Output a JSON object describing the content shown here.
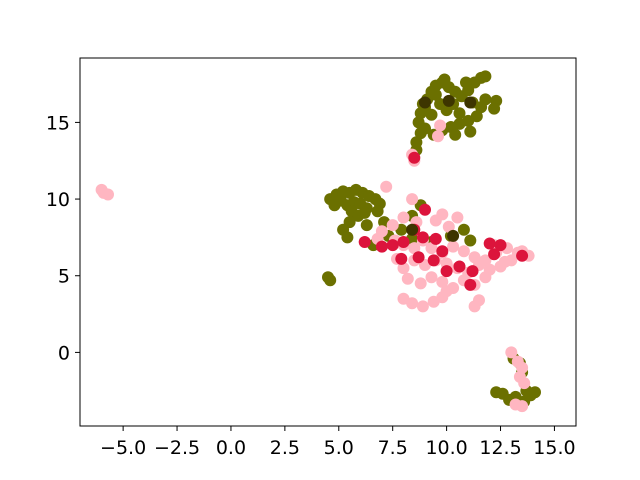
{
  "chart_data": {
    "type": "scatter",
    "title": "",
    "xlabel": "",
    "ylabel": "",
    "xlim": [
      -7.0,
      16.0
    ],
    "ylim": [
      -4.8,
      19.2
    ],
    "x_ticks": [
      -5.0,
      -2.5,
      0.0,
      2.5,
      5.0,
      7.5,
      10.0,
      12.5,
      15.0
    ],
    "x_tick_labels": [
      "−5.0",
      "−2.5",
      "0.0",
      "2.5",
      "5.0",
      "7.5",
      "10.0",
      "12.5",
      "15.0"
    ],
    "y_ticks": [
      0,
      5,
      10,
      15
    ],
    "y_tick_labels": [
      "0",
      "5",
      "10",
      "15"
    ],
    "grid": false,
    "legend": "none",
    "series": [
      {
        "color": "#6b7000",
        "points": [
          [
            8.6,
            13.2
          ],
          [
            8.6,
            13.7
          ],
          [
            8.8,
            14.3
          ],
          [
            8.7,
            15.0
          ],
          [
            8.8,
            15.6
          ],
          [
            9.0,
            16.0
          ],
          [
            9.1,
            16.5
          ],
          [
            9.3,
            17.0
          ],
          [
            9.5,
            17.4
          ],
          [
            9.8,
            17.6
          ],
          [
            10.1,
            17.3
          ],
          [
            10.4,
            17.0
          ],
          [
            10.7,
            16.7
          ],
          [
            11.0,
            17.1
          ],
          [
            11.3,
            17.6
          ],
          [
            11.6,
            17.9
          ],
          [
            11.8,
            18.0
          ],
          [
            11.2,
            16.3
          ],
          [
            11.6,
            16.0
          ],
          [
            11.8,
            16.5
          ],
          [
            11.4,
            15.4
          ],
          [
            11.0,
            15.1
          ],
          [
            10.6,
            14.9
          ],
          [
            10.2,
            14.7
          ],
          [
            9.8,
            14.5
          ],
          [
            9.4,
            14.2
          ],
          [
            9.0,
            14.6
          ],
          [
            9.3,
            15.5
          ],
          [
            9.7,
            16.2
          ],
          [
            10.0,
            15.8
          ],
          [
            10.3,
            16.2
          ],
          [
            9.5,
            16.8
          ],
          [
            10.6,
            15.6
          ],
          [
            11.1,
            14.4
          ],
          [
            10.4,
            14.2
          ],
          [
            8.9,
            16.2
          ],
          [
            9.9,
            17.8
          ],
          [
            10.9,
            17.6
          ],
          [
            12.3,
            16.4
          ],
          [
            12.2,
            15.9
          ],
          [
            4.6,
            10.0
          ],
          [
            4.9,
            10.3
          ],
          [
            5.2,
            10.5
          ],
          [
            5.5,
            10.4
          ],
          [
            5.8,
            10.6
          ],
          [
            6.1,
            10.4
          ],
          [
            6.4,
            10.2
          ],
          [
            6.7,
            10.0
          ],
          [
            6.9,
            9.7
          ],
          [
            4.8,
            9.6
          ],
          [
            5.1,
            9.9
          ],
          [
            5.4,
            9.6
          ],
          [
            5.7,
            9.8
          ],
          [
            6.0,
            9.7
          ],
          [
            6.3,
            9.4
          ],
          [
            5.6,
            9.2
          ],
          [
            5.9,
            8.9
          ],
          [
            6.2,
            9.1
          ],
          [
            5.5,
            8.5
          ],
          [
            5.2,
            8.0
          ],
          [
            6.8,
            9.2
          ],
          [
            7.1,
            8.5
          ],
          [
            8.8,
            9.6
          ],
          [
            8.4,
            8.9
          ],
          [
            7.9,
            8.0
          ],
          [
            7.3,
            7.6
          ],
          [
            8.4,
            7.4
          ],
          [
            9.3,
            7.2
          ],
          [
            10.2,
            7.6
          ],
          [
            10.8,
            8.0
          ],
          [
            11.1,
            7.3
          ],
          [
            5.4,
            7.5
          ],
          [
            6.3,
            8.3
          ],
          [
            6.6,
            7.0
          ],
          [
            4.5,
            4.9
          ],
          [
            4.6,
            4.7
          ],
          [
            13.1,
            -0.4
          ],
          [
            13.4,
            -0.7
          ],
          [
            13.5,
            -1.3
          ],
          [
            12.3,
            -2.6
          ],
          [
            12.6,
            -2.7
          ],
          [
            13.2,
            -2.9
          ],
          [
            13.6,
            -3.2
          ],
          [
            13.9,
            -2.8
          ],
          [
            13.7,
            -2.5
          ],
          [
            14.1,
            -2.6
          ],
          [
            13.3,
            -3.3
          ],
          [
            12.9,
            -3.1
          ]
        ]
      },
      {
        "color": "#ffb6c1",
        "points": [
          [
            -6.0,
            10.6
          ],
          [
            -5.9,
            10.4
          ],
          [
            -5.7,
            10.3
          ],
          [
            8.4,
            12.9
          ],
          [
            8.5,
            12.5
          ],
          [
            9.6,
            14.1
          ],
          [
            9.7,
            14.8
          ],
          [
            7.2,
            10.8
          ],
          [
            8.4,
            10.0
          ],
          [
            9.5,
            8.6
          ],
          [
            9.8,
            9.0
          ],
          [
            10.5,
            8.8
          ],
          [
            10.1,
            8.2
          ],
          [
            8.6,
            8.5
          ],
          [
            8.0,
            8.8
          ],
          [
            7.5,
            8.3
          ],
          [
            7.0,
            7.9
          ],
          [
            6.8,
            7.4
          ],
          [
            7.6,
            7.3
          ],
          [
            8.0,
            7.0
          ],
          [
            8.5,
            6.8
          ],
          [
            8.9,
            7.3
          ],
          [
            9.3,
            6.8
          ],
          [
            9.8,
            6.5
          ],
          [
            10.3,
            6.9
          ],
          [
            10.8,
            6.6
          ],
          [
            11.3,
            6.2
          ],
          [
            11.8,
            6.0
          ],
          [
            12.3,
            6.5
          ],
          [
            12.8,
            6.8
          ],
          [
            13.3,
            6.5
          ],
          [
            13.8,
            6.3
          ],
          [
            13.0,
            6.0
          ],
          [
            12.5,
            5.6
          ],
          [
            12.0,
            5.4
          ],
          [
            11.5,
            5.7
          ],
          [
            11.0,
            5.2
          ],
          [
            10.5,
            5.5
          ],
          [
            10.0,
            5.8
          ],
          [
            9.5,
            6.0
          ],
          [
            9.0,
            5.7
          ],
          [
            8.5,
            6.0
          ],
          [
            8.0,
            5.5
          ],
          [
            7.7,
            6.1
          ],
          [
            8.2,
            4.8
          ],
          [
            8.8,
            4.5
          ],
          [
            9.3,
            4.9
          ],
          [
            9.8,
            4.6
          ],
          [
            10.3,
            4.2
          ],
          [
            10.8,
            4.7
          ],
          [
            11.3,
            4.4
          ],
          [
            11.8,
            4.9
          ],
          [
            8.0,
            3.5
          ],
          [
            8.4,
            3.2
          ],
          [
            8.9,
            3.0
          ],
          [
            9.4,
            3.3
          ],
          [
            9.8,
            3.6
          ],
          [
            10.0,
            4.0
          ],
          [
            11.3,
            3.0
          ],
          [
            11.5,
            3.4
          ],
          [
            12.2,
            7.0
          ],
          [
            12.7,
            5.9
          ],
          [
            13.5,
            6.6
          ],
          [
            13.0,
            0.0
          ],
          [
            13.3,
            -0.6
          ],
          [
            13.5,
            -1.0
          ],
          [
            13.4,
            -1.6
          ],
          [
            13.6,
            -2.0
          ],
          [
            13.2,
            -3.4
          ],
          [
            13.5,
            -3.5
          ]
        ]
      },
      {
        "color": "#dc143c",
        "points": [
          [
            8.5,
            12.7
          ],
          [
            9.0,
            9.3
          ],
          [
            8.5,
            8.0
          ],
          [
            8.9,
            7.5
          ],
          [
            9.5,
            7.4
          ],
          [
            9.8,
            6.6
          ],
          [
            6.2,
            7.2
          ],
          [
            7.0,
            6.9
          ],
          [
            7.5,
            7.0
          ],
          [
            8.0,
            7.2
          ],
          [
            8.7,
            6.2
          ],
          [
            9.4,
            6.0
          ],
          [
            10.0,
            5.3
          ],
          [
            10.6,
            5.6
          ],
          [
            11.1,
            4.4
          ],
          [
            11.2,
            5.3
          ],
          [
            12.0,
            7.1
          ],
          [
            12.5,
            7.0
          ],
          [
            13.5,
            6.3
          ],
          [
            12.2,
            6.4
          ],
          [
            7.9,
            6.1
          ]
        ]
      },
      {
        "color": "#3d3500",
        "points": [
          [
            9.0,
            16.3
          ],
          [
            10.1,
            16.4
          ],
          [
            11.1,
            16.3
          ],
          [
            8.4,
            8.0
          ],
          [
            10.3,
            7.6
          ]
        ]
      }
    ]
  }
}
